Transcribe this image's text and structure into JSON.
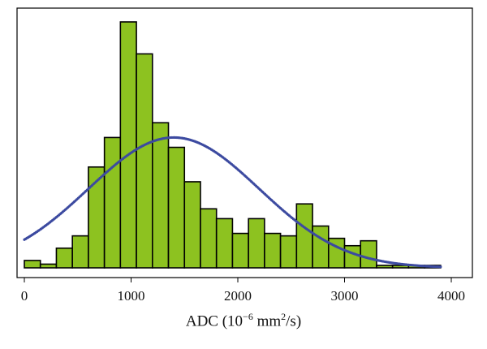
{
  "chart_data": {
    "type": "bar",
    "title": "",
    "xlabel": {
      "prefix": "ADC (10",
      "exp": "−6",
      "middle": " mm",
      "exp2": "2",
      "suffix": "/s)"
    },
    "ylabel": "",
    "xlim": [
      -50,
      4000
    ],
    "ylim": [
      0,
      100
    ],
    "bin_width": 150,
    "bins": [
      {
        "start": 0,
        "value": 3
      },
      {
        "start": 150,
        "value": 1.5
      },
      {
        "start": 300,
        "value": 8
      },
      {
        "start": 450,
        "value": 13
      },
      {
        "start": 600,
        "value": 41
      },
      {
        "start": 750,
        "value": 53
      },
      {
        "start": 900,
        "value": 100
      },
      {
        "start": 1050,
        "value": 87
      },
      {
        "start": 1200,
        "value": 59
      },
      {
        "start": 1350,
        "value": 49
      },
      {
        "start": 1500,
        "value": 35
      },
      {
        "start": 1650,
        "value": 24
      },
      {
        "start": 1800,
        "value": 20
      },
      {
        "start": 1950,
        "value": 14
      },
      {
        "start": 2100,
        "value": 20
      },
      {
        "start": 2250,
        "value": 14
      },
      {
        "start": 2400,
        "value": 13
      },
      {
        "start": 2550,
        "value": 26
      },
      {
        "start": 2700,
        "value": 17
      },
      {
        "start": 2850,
        "value": 12
      },
      {
        "start": 3000,
        "value": 9
      },
      {
        "start": 3150,
        "value": 11
      },
      {
        "start": 3300,
        "value": 1
      },
      {
        "start": 3450,
        "value": 1
      },
      {
        "start": 3600,
        "value": 1
      },
      {
        "start": 3750,
        "value": 1
      }
    ],
    "fit_curve": {
      "type": "normal",
      "mean": 1400,
      "sd": 800,
      "peak": 53,
      "x_range": [
        0,
        3900
      ],
      "style": "dotted"
    },
    "xticks": [
      0,
      1000,
      2000,
      3000,
      4000
    ],
    "grid": false,
    "legend": "none",
    "colors": {
      "bar_fill": "#8dc220",
      "bar_stroke": "#000000",
      "curve": "#3c4aa0"
    }
  }
}
